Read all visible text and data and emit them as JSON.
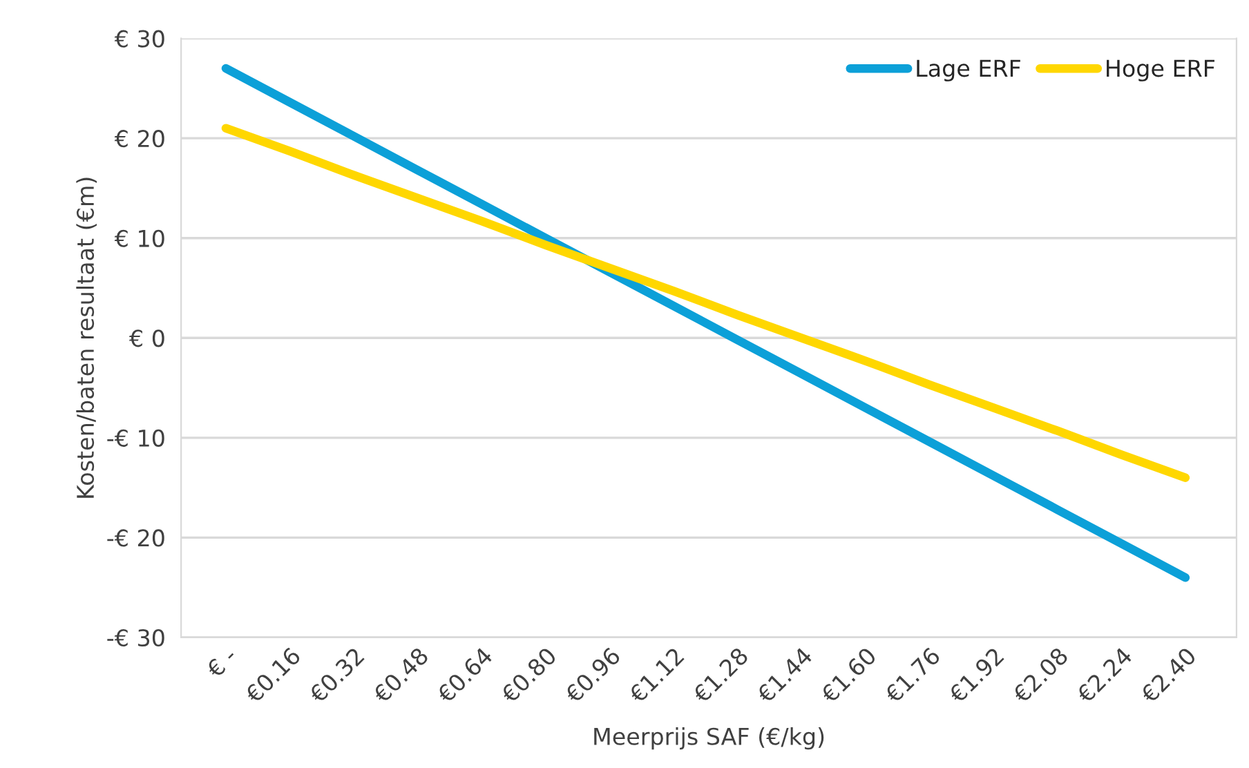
{
  "chart_data": {
    "type": "line",
    "xlabel": "Meerprijs SAF (€/kg)",
    "ylabel": "Kosten/baten resultaat (€m)",
    "categories": [
      "€ -",
      "€0.16",
      "€0.32",
      "€0.48",
      "€0.64",
      "€0.80",
      "€0.96",
      "€1.12",
      "€1.28",
      "€1.44",
      "€1.60",
      "€1.76",
      "€1.92",
      "€2.08",
      "€2.24",
      "€2.40"
    ],
    "series": [
      {
        "name": "Lage ERF",
        "color": "#0ca0d8",
        "values": [
          27,
          23.6,
          20.2,
          16.8,
          13.4,
          10,
          6.6,
          3.2,
          -0.2,
          -3.6,
          -7,
          -10.4,
          -13.8,
          -17.2,
          -20.6,
          -24
        ]
      },
      {
        "name": "Hoge ERF",
        "color": "#ffd700",
        "values": [
          21,
          18.7,
          16.3,
          14,
          11.7,
          9.3,
          7,
          4.7,
          2.3,
          0,
          -2.3,
          -4.7,
          -7,
          -9.3,
          -11.7,
          -14
        ]
      }
    ],
    "ylim": [
      -30,
      30
    ],
    "yticks": [
      {
        "value": -30,
        "label": "-€ 30"
      },
      {
        "value": -20,
        "label": "-€ 20"
      },
      {
        "value": -10,
        "label": "-€ 10"
      },
      {
        "value": 0,
        "label": "€ 0"
      },
      {
        "value": 10,
        "label": "€ 10"
      },
      {
        "value": 20,
        "label": "€ 20"
      },
      {
        "value": 30,
        "label": "€ 30"
      }
    ],
    "grid": "y",
    "legend": "top right",
    "marker": "none",
    "line_style": "solid"
  }
}
